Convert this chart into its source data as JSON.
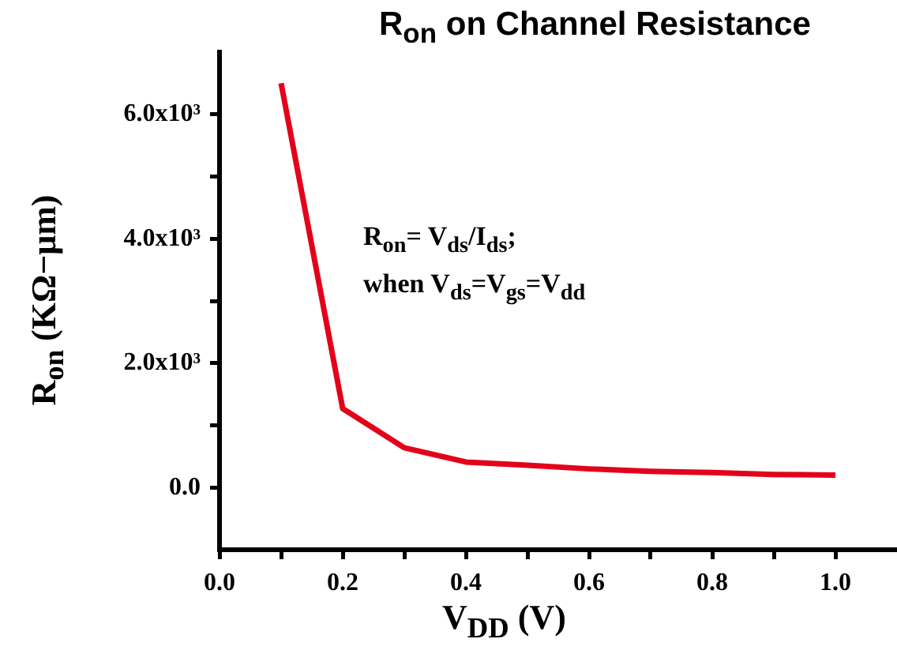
{
  "chart_data": {
    "type": "line",
    "title": "R$_{on}$ on Channel Resistance",
    "xlabel": "V$_{DD}$ (V)",
    "ylabel": "R$_{on}$ (KΩ−μm)",
    "annotations": [
      "R$_{on}$= V$_{ds}$/I$_{ds}$;",
      "when V$_{ds}$=V$_{gs}$=V$_{dd}$"
    ],
    "x": [
      0.1,
      0.2,
      0.3,
      0.4,
      0.5,
      0.6,
      0.7,
      0.8,
      0.9,
      1.0
    ],
    "series": [
      {
        "color": "#e3001b",
        "values": [
          6500,
          1270,
          640,
          410,
          360,
          300,
          260,
          240,
          210,
          200
        ]
      }
    ],
    "xlim": [
      0,
      1.1
    ],
    "ylim": [
      -1000,
      7000
    ],
    "xticks": [
      {
        "value": 0,
        "label": "0.0"
      },
      {
        "value": 0.1,
        "label": null
      },
      {
        "value": 0.2,
        "label": "0.2"
      },
      {
        "value": 0.3,
        "label": null
      },
      {
        "value": 0.4,
        "label": "0.4"
      },
      {
        "value": 0.5,
        "label": null
      },
      {
        "value": 0.6,
        "label": "0.6"
      },
      {
        "value": 0.7,
        "label": null
      },
      {
        "value": 0.8,
        "label": "0.8"
      },
      {
        "value": 0.9,
        "label": null
      },
      {
        "value": 1,
        "label": "1.0"
      }
    ],
    "yticks": [
      {
        "value": 0,
        "label": "0.0"
      },
      {
        "value": 1000,
        "label": null
      },
      {
        "value": 2000,
        "label": "2.0x10³"
      },
      {
        "value": 3000,
        "label": null
      },
      {
        "value": 4000,
        "label": "4.0x10³"
      },
      {
        "value": 5000,
        "label": null
      },
      {
        "value": 6000,
        "label": "6.0x10³"
      }
    ],
    "grid": false,
    "legend": false,
    "marker": "none",
    "line_style": "solid"
  }
}
